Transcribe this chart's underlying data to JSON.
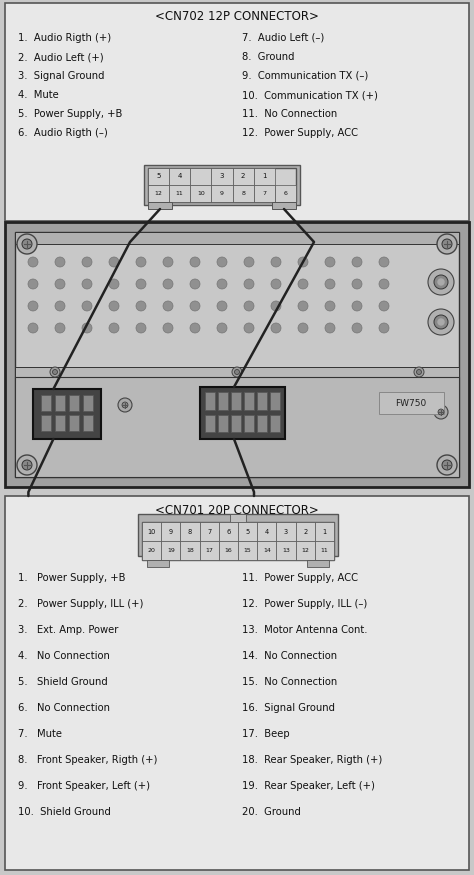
{
  "bg_color": "#c8c8c8",
  "box_bg": "#e8e8e8",
  "title_cn702": "<CN702 12P CONNECTOR>",
  "cn702_left": [
    "1.  Audio Rigth (+)",
    "2.  Audio Left (+)",
    "3.  Signal Ground",
    "4.  Mute",
    "5.  Power Supply, +B",
    "6.  Audio Rigth (–)"
  ],
  "cn702_right": [
    "7.  Audio Left (–)",
    "8.  Ground",
    "9.  Communication TX (–)",
    "10.  Communication TX (+)",
    "11.  No Connection",
    "12.  Power Supply, ACC"
  ],
  "cn702_top_row": [
    "5",
    "4",
    "",
    "3",
    "2",
    "1"
  ],
  "cn702_bot_row": [
    "12",
    "11",
    "10",
    "9",
    "8",
    "7",
    "6"
  ],
  "title_cn701": "<CN701 20P CONNECTOR>",
  "cn701_top_row": [
    "10",
    "9",
    "8",
    "7",
    "6",
    "5",
    "4",
    "3",
    "2",
    "1"
  ],
  "cn701_bot_row": [
    "20",
    "19",
    "18",
    "17",
    "16",
    "15",
    "14",
    "13",
    "12",
    "11"
  ],
  "cn701_left": [
    "1.   Power Supply, +B",
    "2.   Power Supply, ILL (+)",
    "3.   Ext. Amp. Power",
    "4.   No Connection",
    "5.   Shield Ground",
    "6.   No Connection",
    "7.   Mute",
    "8.   Front Speaker, Rigth (+)",
    "9.   Front Speaker, Left (+)",
    "10.  Shield Ground"
  ],
  "cn701_right": [
    "11.  Power Supply, ACC",
    "12.  Power Supply, ILL (–)",
    "13.  Motor Antenna Cont.",
    "14.  No Connection",
    "15.  No Connection",
    "16.  Signal Ground",
    "17.  Beep",
    "18.  Rear Speaker, Rigth (+)",
    "19.  Rear Speaker, Left (+)",
    "20.  Ground"
  ],
  "font_size_title": 8.5,
  "font_size_item": 7.2,
  "text_color": "#111111",
  "box_border": "#555555",
  "radio_bg": "#d0d0d0",
  "radio_border": "#222222"
}
